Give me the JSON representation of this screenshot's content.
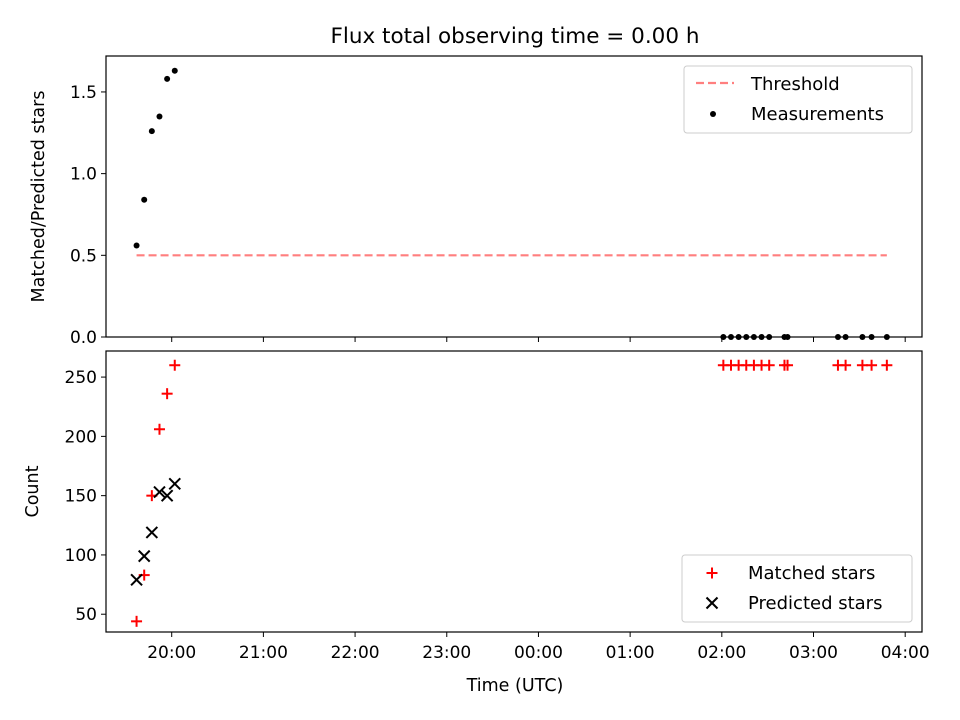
{
  "title": "Flux total observing time = 0.00 h",
  "xlabel": "Time (UTC)",
  "x_ticks": [
    "20:00",
    "21:00",
    "22:00",
    "23:00",
    "00:00",
    "01:00",
    "02:00",
    "03:00",
    "04:00"
  ],
  "colors": {
    "threshold": "#ff7f7f",
    "measurements": "#000000",
    "matched": "#ff0000",
    "predicted": "#000000"
  },
  "chart_data": [
    {
      "type": "scatter",
      "ylabel": "Matched/Predicted stars",
      "ylim": [
        0.0,
        1.72
      ],
      "yticks": [
        "0.0",
        "0.5",
        "1.0",
        "1.5"
      ],
      "xlim": [
        "19:17",
        "04:11"
      ],
      "legend": "top-right",
      "series": [
        {
          "name": "Threshold",
          "style": "dashed-line",
          "x": [
            "19:37",
            "03:48"
          ],
          "y": [
            0.5,
            0.5
          ]
        },
        {
          "name": "Measurements",
          "style": "dots",
          "x": [
            "19:37",
            "19:42",
            "19:47",
            "19:52",
            "19:57",
            "20:02",
            "02:01",
            "02:06",
            "02:11",
            "02:16",
            "02:21",
            "02:26",
            "02:31",
            "02:41",
            "02:43",
            "03:16",
            "03:21",
            "03:32",
            "03:38",
            "03:48"
          ],
          "y": [
            0.56,
            0.84,
            1.26,
            1.35,
            1.58,
            1.63,
            0,
            0,
            0,
            0,
            0,
            0,
            0,
            0,
            0,
            0,
            0,
            0,
            0,
            0
          ]
        }
      ]
    },
    {
      "type": "scatter",
      "ylabel": "Count",
      "ylim": [
        35,
        272
      ],
      "yticks": [
        "50",
        "100",
        "150",
        "200",
        "250"
      ],
      "xlim": [
        "19:17",
        "04:11"
      ],
      "legend": "bottom-right",
      "series": [
        {
          "name": "Matched stars",
          "marker": "+",
          "x": [
            "19:37",
            "19:42",
            "19:47",
            "19:52",
            "19:57",
            "20:02",
            "02:01",
            "02:06",
            "02:11",
            "02:16",
            "02:21",
            "02:26",
            "02:31",
            "02:41",
            "02:43",
            "03:16",
            "03:21",
            "03:32",
            "03:38",
            "03:48"
          ],
          "y": [
            44,
            83,
            150,
            206,
            236,
            260,
            260,
            260,
            260,
            260,
            260,
            260,
            260,
            260,
            260,
            260,
            260,
            260,
            260,
            260
          ]
        },
        {
          "name": "Predicted stars",
          "marker": "x",
          "x": [
            "19:37",
            "19:42",
            "19:47",
            "19:52",
            "19:57",
            "20:02"
          ],
          "y": [
            79,
            99,
            119,
            153,
            150,
            160
          ]
        }
      ]
    }
  ]
}
